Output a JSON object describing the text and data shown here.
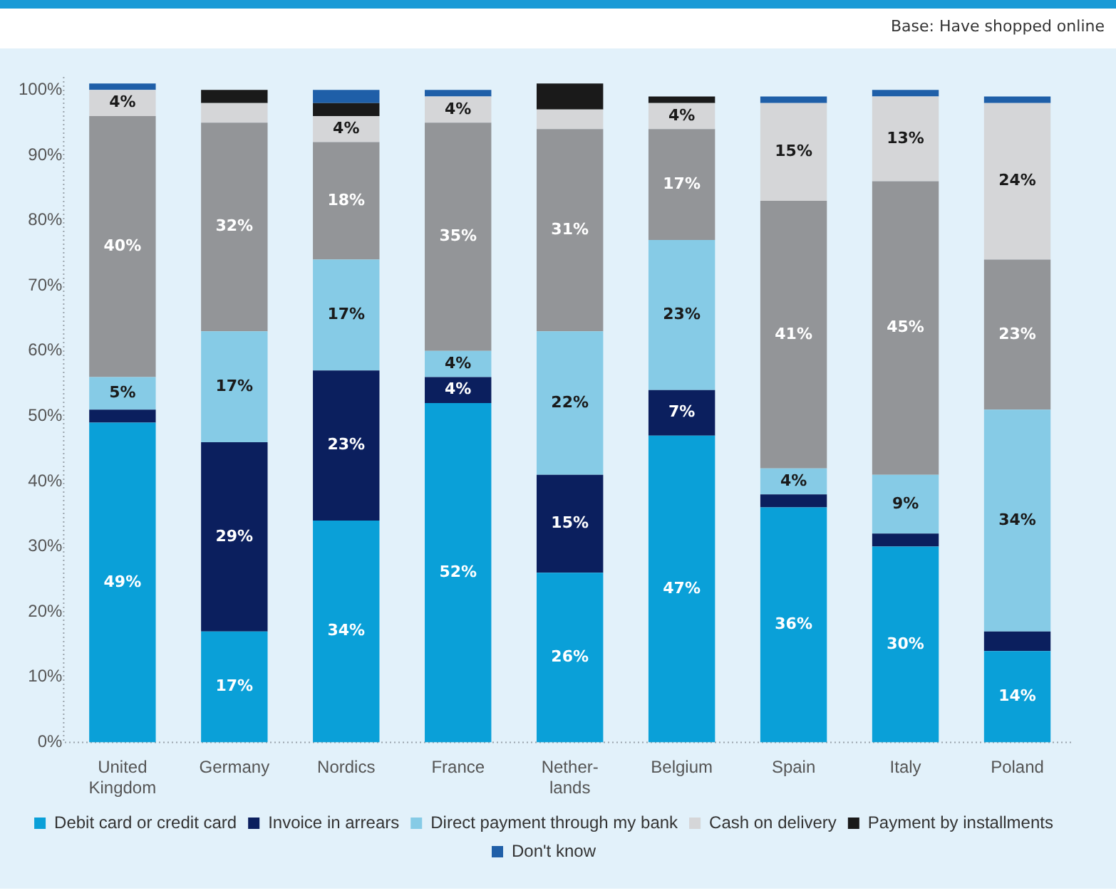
{
  "chart_data": {
    "type": "bar",
    "stacked": true,
    "categories": [
      "United Kingdom",
      "Germany",
      "Nordics",
      "France",
      "Nether-lands",
      "Belgium",
      "Spain",
      "Italy",
      "Poland"
    ],
    "series": [
      {
        "name": "Debit card or credit card",
        "color": "#0aa0d8",
        "values": [
          49,
          17,
          34,
          52,
          26,
          47,
          36,
          30,
          14
        ],
        "value_labels": [
          "49%",
          "17%",
          "34%",
          "52%",
          "26%",
          "47%",
          "36%",
          "30%",
          "14%"
        ]
      },
      {
        "name": "Invoice in arrears",
        "color": "#0b1f5e",
        "values": [
          2,
          29,
          23,
          4,
          15,
          7,
          2,
          2,
          3
        ],
        "value_labels": [
          null,
          "29%",
          "23%",
          "4%",
          "15%",
          "7%",
          null,
          null,
          null
        ]
      },
      {
        "name": "Direct payment through my bank",
        "color": "#86cbe6",
        "values": [
          5,
          17,
          17,
          4,
          22,
          23,
          4,
          9,
          34
        ],
        "value_labels": [
          "5%",
          "17%",
          "17%",
          "4%",
          "22%",
          "23%",
          "4%",
          "9%",
          "34%"
        ]
      },
      {
        "color": "#939598",
        "values": [
          40,
          32,
          18,
          35,
          31,
          17,
          41,
          45,
          23
        ],
        "value_labels": [
          "40%",
          "32%",
          "18%",
          "35%",
          "31%",
          "17%",
          "41%",
          "45%",
          "23%"
        ]
      },
      {
        "name": "Cash on delivery",
        "color": "#d5d6d8",
        "values": [
          4,
          3,
          4,
          4,
          3,
          4,
          15,
          13,
          24
        ],
        "value_labels": [
          "4%",
          null,
          "4%",
          "4%",
          null,
          "4%",
          "15%",
          "13%",
          "24%"
        ]
      },
      {
        "name": "Payment by installments",
        "color": "#1a1a1a",
        "values": [
          0,
          2,
          2,
          0,
          4,
          1,
          0,
          0,
          0
        ]
      },
      {
        "name": "Don't know",
        "color": "#1f5fa8",
        "values": [
          1,
          0,
          2,
          1,
          0,
          0,
          1,
          1,
          1
        ]
      }
    ],
    "ylim": [
      0,
      102
    ],
    "yticks": [
      {
        "value": 0,
        "label": "0%"
      },
      {
        "value": 10,
        "label": "10%"
      },
      {
        "value": 20,
        "label": "20%"
      },
      {
        "value": 30,
        "label": "30%"
      },
      {
        "value": 40,
        "label": "40%"
      },
      {
        "value": 50,
        "label": "50%"
      },
      {
        "value": 60,
        "label": "60%"
      },
      {
        "value": 70,
        "label": "70%"
      },
      {
        "value": 80,
        "label": "80%"
      },
      {
        "value": 90,
        "label": "90%"
      },
      {
        "value": 100,
        "label": "100%"
      }
    ],
    "grid": false,
    "legend": "bottom",
    "annotations": [
      "Base: Have shopped online"
    ]
  }
}
